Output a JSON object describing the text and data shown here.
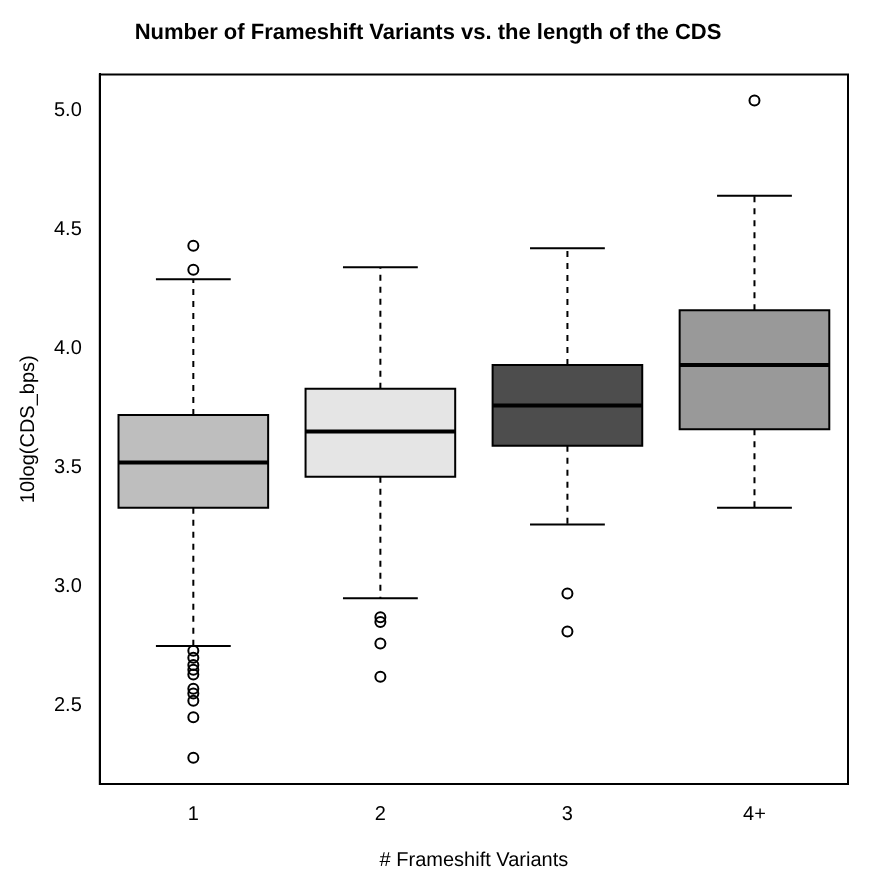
{
  "chart_data": {
    "type": "box",
    "title": "Number of Frameshift Variants vs. the length of the CDS",
    "xlabel": "# Frameshift Variants",
    "ylabel": "10log(CDS_bps)",
    "categories": [
      "1",
      "2",
      "3",
      "4+"
    ],
    "colors": [
      "#bebebe",
      "#e5e5e5",
      "#4d4d4d",
      "#999999"
    ],
    "boxes": [
      {
        "low": 2.75,
        "q1": 3.33,
        "median": 3.52,
        "q3": 3.72,
        "high": 4.29,
        "outliers": [
          4.43,
          4.33,
          2.73,
          2.7,
          2.67,
          2.65,
          2.63,
          2.57,
          2.55,
          2.52,
          2.45,
          2.28
        ]
      },
      {
        "low": 2.95,
        "q1": 3.46,
        "median": 3.65,
        "q3": 3.83,
        "high": 4.34,
        "outliers": [
          2.87,
          2.85,
          2.76,
          2.62
        ]
      },
      {
        "low": 3.26,
        "q1": 3.59,
        "median": 3.76,
        "q3": 3.93,
        "high": 4.42,
        "outliers": [
          2.97,
          2.81
        ]
      },
      {
        "low": 3.33,
        "q1": 3.66,
        "median": 3.93,
        "q3": 4.16,
        "high": 4.64,
        "outliers": [
          5.04
        ]
      }
    ],
    "ylim": [
      2.17,
      5.15
    ],
    "yticks": [
      2.5,
      {
        "value": 3,
        "label": "3.0"
      },
      3.5,
      {
        "value": 4,
        "label": "4.0"
      },
      4.5,
      {
        "value": 5,
        "label": "5.0"
      }
    ],
    "grid": false,
    "legend": false
  }
}
